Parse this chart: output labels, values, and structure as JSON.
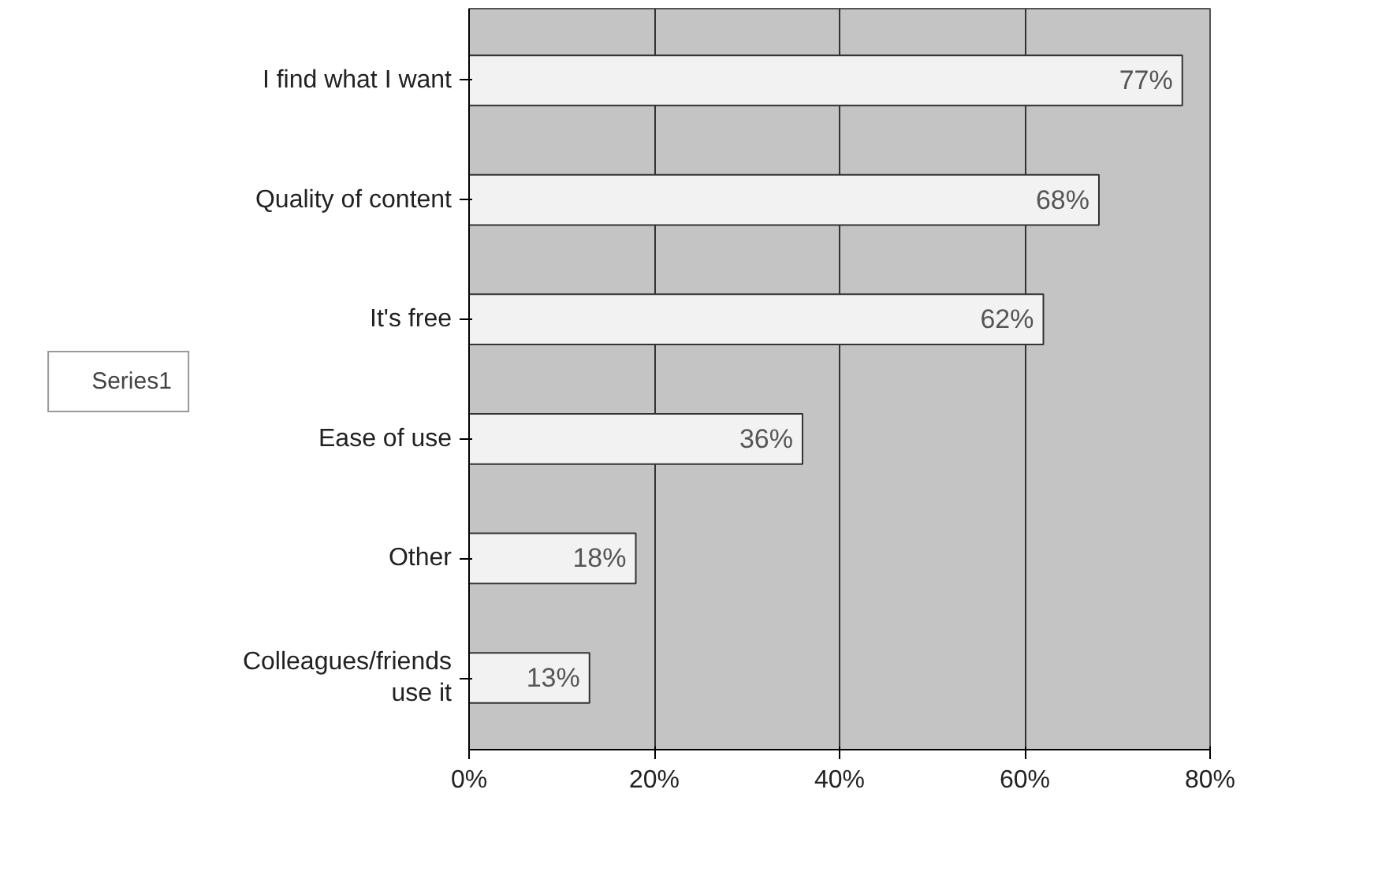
{
  "chart_data": {
    "type": "bar",
    "orientation": "horizontal",
    "categories": [
      "I find what I want",
      "Quality of content",
      "It's free",
      "Ease of use",
      "Other",
      "Colleagues/friends use it"
    ],
    "series": [
      {
        "name": "Series1",
        "color": "#f2f2f2",
        "values": [
          77,
          68,
          62,
          36,
          18,
          13
        ]
      }
    ],
    "value_labels": [
      "77%",
      "68%",
      "62%",
      "36%",
      "18%",
      "13%"
    ],
    "xlim": [
      0,
      80
    ],
    "xticks": [
      {
        "value": 0,
        "label": "0%"
      },
      {
        "value": 20,
        "label": "20%"
      },
      {
        "value": 40,
        "label": "40%"
      },
      {
        "value": 60,
        "label": "60%"
      },
      {
        "value": 80,
        "label": "80%"
      }
    ],
    "grid": "x",
    "legend": "left"
  }
}
